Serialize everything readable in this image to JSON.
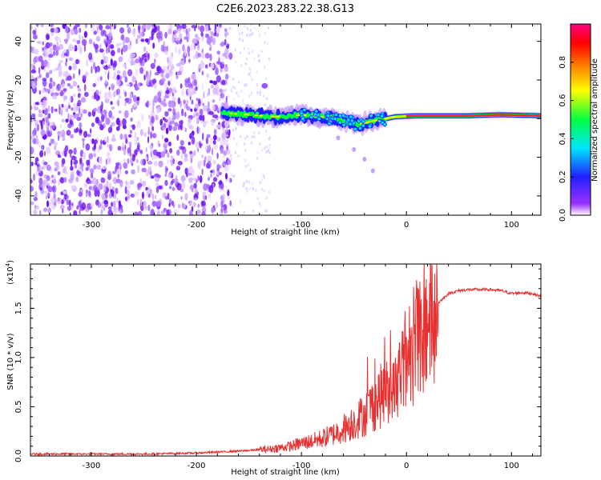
{
  "figure": {
    "title": "C2E6.2023.283.22.38.G13"
  },
  "chart_data": [
    {
      "type": "heatmap",
      "xlabel": "Height of straight line (km)",
      "ylabel": "Frequency (Hz)",
      "xlim": [
        -358,
        128
      ],
      "ylim": [
        -50,
        49
      ],
      "xticks": [
        -300,
        -200,
        -100,
        0,
        100
      ],
      "xtick_labels": [
        "-300",
        "-200",
        "-100",
        "0",
        "100"
      ],
      "yticks": [
        -40,
        -20,
        0,
        20,
        40
      ],
      "ytick_labels": [
        "-40",
        "-20",
        "0",
        "20",
        "40"
      ],
      "noise_region_x": [
        -358,
        -175
      ],
      "signal_trace": [
        {
          "x": -175,
          "y": 3
        },
        {
          "x": -150,
          "y": 2
        },
        {
          "x": -125,
          "y": 1
        },
        {
          "x": -100,
          "y": 2
        },
        {
          "x": -80,
          "y": 1
        },
        {
          "x": -60,
          "y": -1
        },
        {
          "x": -45,
          "y": -3
        },
        {
          "x": -30,
          "y": -1
        },
        {
          "x": -10,
          "y": 1
        },
        {
          "x": 10,
          "y": 1.5
        },
        {
          "x": 60,
          "y": 1.5
        },
        {
          "x": 90,
          "y": 2
        },
        {
          "x": 128,
          "y": 1.5
        }
      ],
      "branch_trace": [
        {
          "x": -65,
          "y": -10
        },
        {
          "x": -50,
          "y": -16
        },
        {
          "x": -40,
          "y": -21
        },
        {
          "x": -32,
          "y": -27
        }
      ],
      "colorbar": {
        "label": "Normalized spectral amplitude",
        "range": [
          0,
          1
        ],
        "ticks": [
          0.0,
          0.2,
          0.4,
          0.6,
          0.8
        ],
        "tick_labels": [
          "0.0",
          "0.2",
          "0.4",
          "0.6",
          "0.8"
        ],
        "colors": [
          "#ffffff",
          "#9b30ff",
          "#2020ff",
          "#00e5ff",
          "#00ff40",
          "#ffff00",
          "#ff8000",
          "#ff0000",
          "#ff0080"
        ]
      }
    },
    {
      "type": "line",
      "xlabel": "Height of straight line (km)",
      "ylabel": "SNR (10 * v/v)",
      "multiplier": "(x10",
      "multiplier_exp": "4",
      "multiplier_close": ")",
      "xlim": [
        -358,
        128
      ],
      "ylim": [
        0,
        1.95
      ],
      "xticks": [
        -300,
        -200,
        -100,
        0,
        100
      ],
      "xtick_labels": [
        "-300",
        "-200",
        "-100",
        "0",
        "100"
      ],
      "yticks": [
        0.0,
        0.5,
        1.0,
        1.5
      ],
      "ytick_labels": [
        "0.0",
        "0.5",
        "1.0",
        "1.5"
      ],
      "series": [
        {
          "color": "#e83030",
          "x": [
            -358,
            -300,
            -250,
            -200,
            -160,
            -130,
            -110,
            -100,
            -90,
            -80,
            -70,
            -60,
            -50,
            -40,
            -30,
            -20,
            -10,
            0,
            10,
            20,
            30,
            40,
            50,
            60,
            70,
            80,
            90,
            100,
            110,
            120,
            128
          ],
          "y": [
            0.02,
            0.02,
            0.02,
            0.03,
            0.05,
            0.07,
            0.1,
            0.13,
            0.15,
            0.18,
            0.22,
            0.28,
            0.35,
            0.42,
            0.55,
            0.65,
            0.8,
            1.0,
            1.2,
            1.4,
            1.55,
            1.65,
            1.68,
            1.69,
            1.69,
            1.69,
            1.68,
            1.65,
            1.66,
            1.65,
            1.62
          ]
        }
      ]
    }
  ]
}
